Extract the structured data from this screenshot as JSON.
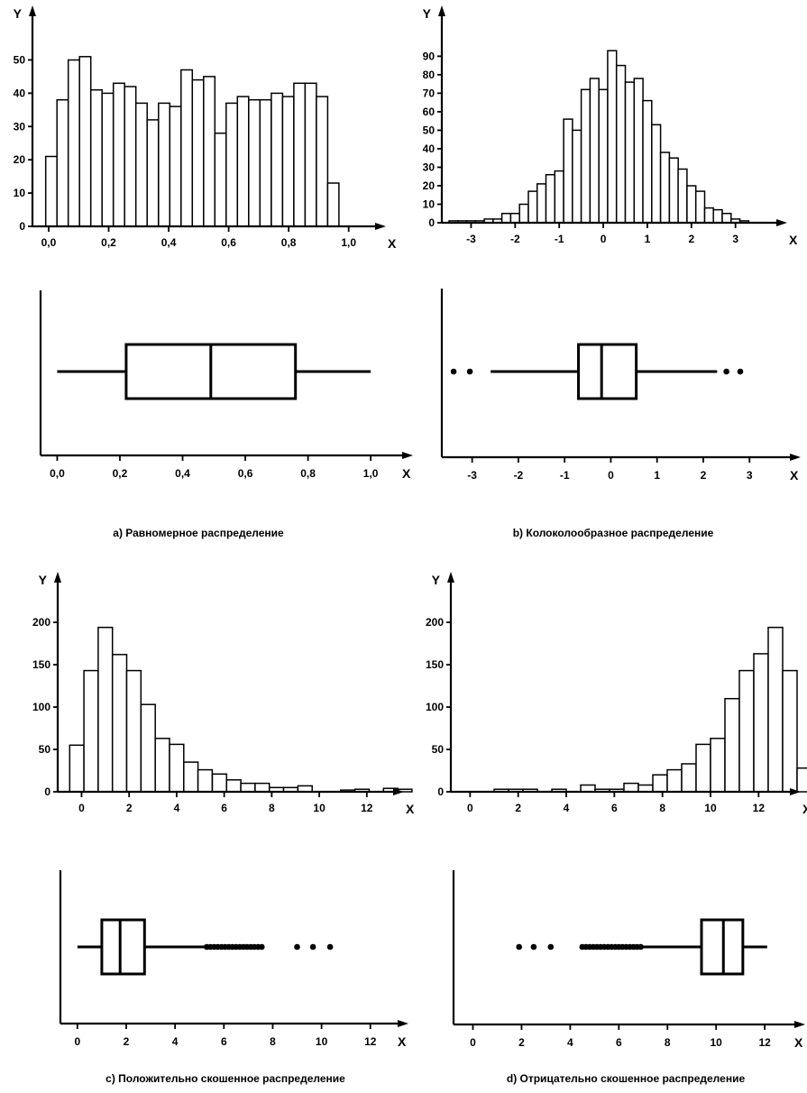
{
  "chart_data": [
    {
      "panel": "a",
      "type": "bar",
      "xlabel": "X",
      "ylabel": "Y",
      "xlim": [
        -0.03,
        1.04
      ],
      "ylim": [
        0,
        55
      ],
      "xticks": [
        0.0,
        0.2,
        0.4,
        0.6,
        0.8,
        1.0
      ],
      "xtick_labels": [
        "0,0",
        "0,2",
        "0,4",
        "0,6",
        "0,8",
        "1,0"
      ],
      "yticks": [
        0,
        10,
        20,
        30,
        40,
        50
      ],
      "ytick_labels": [
        "0",
        "10",
        "20",
        "30",
        "40",
        "50"
      ],
      "bin_start": -0.01,
      "bin_width": 0.0376,
      "values": [
        21,
        38,
        50,
        51,
        41,
        40,
        43,
        42,
        37,
        32,
        37,
        36,
        47,
        44,
        45,
        28,
        37,
        39,
        38,
        38,
        40,
        39,
        43,
        43,
        39,
        13
      ],
      "boxplot": {
        "xlim": [
          -0.03,
          1.06
        ],
        "xticks": [
          0.0,
          0.2,
          0.4,
          0.6,
          0.8,
          1.0
        ],
        "xtick_labels": [
          "0,0",
          "0,2",
          "0,4",
          "0,6",
          "0,8",
          "1,0"
        ],
        "whisker_low": 0.0,
        "q1": 0.22,
        "median": 0.49,
        "q3": 0.76,
        "whisker_high": 1.0,
        "outliers": []
      },
      "caption": "а) Равномерное распределение"
    },
    {
      "panel": "b",
      "type": "bar",
      "xlabel": "X",
      "ylabel": "Y",
      "xlim": [
        -3.5,
        3.6
      ],
      "ylim": [
        0,
        97
      ],
      "xticks": [
        -3,
        -2,
        -1,
        0,
        1,
        2,
        3
      ],
      "xtick_labels": [
        "-3",
        "-2",
        "-1",
        "0",
        "1",
        "2",
        "3"
      ],
      "yticks": [
        0,
        10,
        20,
        30,
        40,
        50,
        60,
        70,
        80,
        90
      ],
      "ytick_labels": [
        "0",
        "10",
        "20",
        "30",
        "40",
        "50",
        "60",
        "70",
        "80",
        "90"
      ],
      "bin_start": -3.5,
      "bin_width": 0.2,
      "values": [
        1,
        1,
        1,
        1,
        2,
        2,
        5,
        5,
        10,
        17,
        21,
        26,
        28,
        56,
        50,
        72,
        78,
        72,
        93,
        85,
        76,
        78,
        66,
        53,
        38,
        35,
        29,
        20,
        17,
        8,
        7,
        5,
        2,
        1
      ],
      "boxplot": {
        "xlim": [
          -3.5,
          3.6
        ],
        "xticks": [
          -3,
          -2,
          -1,
          0,
          1,
          2,
          3
        ],
        "xtick_labels": [
          "-3",
          "-2",
          "-1",
          "0",
          "1",
          "2",
          "3"
        ],
        "whisker_low": -2.6,
        "q1": -0.7,
        "median": -0.2,
        "q3": 0.55,
        "whisker_high": 2.3,
        "outliers": [
          -3.4,
          -3.05,
          2.5,
          2.8
        ]
      },
      "caption": "b) Колоколообразное распределение"
    },
    {
      "panel": "c",
      "type": "bar",
      "xlabel": "X",
      "ylabel": "Y",
      "xlim": [
        -0.7,
        12.5
      ],
      "ylim": [
        0,
        215
      ],
      "xticks": [
        0,
        2,
        4,
        6,
        8,
        10,
        12
      ],
      "xtick_labels": [
        "0",
        "2",
        "4",
        "6",
        "8",
        "10",
        "12"
      ],
      "yticks": [
        0,
        50,
        100,
        150,
        200
      ],
      "ytick_labels": [
        "0",
        "50",
        "100",
        "150",
        "200"
      ],
      "bin_start": -0.5,
      "bin_width": 0.6,
      "values": [
        55,
        143,
        194,
        162,
        143,
        103,
        63,
        56,
        35,
        26,
        21,
        14,
        10,
        10,
        5,
        5,
        7,
        0,
        0,
        2,
        3,
        0,
        4,
        3
      ],
      "boxplot": {
        "xlim": [
          -0.4,
          12.6
        ],
        "xticks": [
          0,
          2,
          4,
          6,
          8,
          10,
          12
        ],
        "xtick_labels": [
          "0",
          "2",
          "4",
          "6",
          "8",
          "10",
          "12"
        ],
        "whisker_low": 0.0,
        "q1": 1.0,
        "median": 1.75,
        "q3": 2.75,
        "whisker_high": 5.3,
        "outliers": [
          5.3,
          5.45,
          5.6,
          5.75,
          5.9,
          6.05,
          6.2,
          6.35,
          6.5,
          6.65,
          6.8,
          6.95,
          7.1,
          7.25,
          7.4,
          7.55,
          9.0,
          9.65,
          10.35
        ]
      },
      "caption": "c) Положительно скошенное распределение"
    },
    {
      "panel": "d",
      "type": "bar",
      "xlabel": "X",
      "ylabel": "Y",
      "xlim": [
        -0.5,
        12.7
      ],
      "ylim": [
        0,
        215
      ],
      "xticks": [
        0,
        2,
        4,
        6,
        8,
        10,
        12
      ],
      "xtick_labels": [
        "0",
        "2",
        "4",
        "6",
        "8",
        "10",
        "12"
      ],
      "yticks": [
        0,
        50,
        100,
        150,
        200
      ],
      "ytick_labels": [
        "0",
        "50",
        "100",
        "150",
        "200"
      ],
      "bin_start": 1.0,
      "bin_width": 0.6,
      "values": [
        3,
        3,
        3,
        0,
        3,
        0,
        8,
        3,
        3,
        10,
        8,
        20,
        26,
        33,
        56,
        63,
        110,
        143,
        163,
        194,
        143,
        28
      ],
      "boxplot": {
        "xlim": [
          -0.5,
          12.7
        ],
        "xticks": [
          0,
          2,
          4,
          6,
          8,
          10,
          12
        ],
        "xtick_labels": [
          "0",
          "2",
          "4",
          "6",
          "8",
          "10",
          "12"
        ],
        "whisker_low": 6.9,
        "q1": 9.4,
        "median": 10.3,
        "q3": 11.1,
        "whisker_high": 12.1,
        "outliers": [
          1.9,
          2.5,
          3.2,
          4.5,
          4.65,
          4.8,
          4.95,
          5.1,
          5.25,
          5.4,
          5.55,
          5.7,
          5.85,
          6.0,
          6.15,
          6.3,
          6.45,
          6.6,
          6.75,
          6.9
        ]
      },
      "caption": "d) Отрицательно скошенное распределение"
    }
  ]
}
